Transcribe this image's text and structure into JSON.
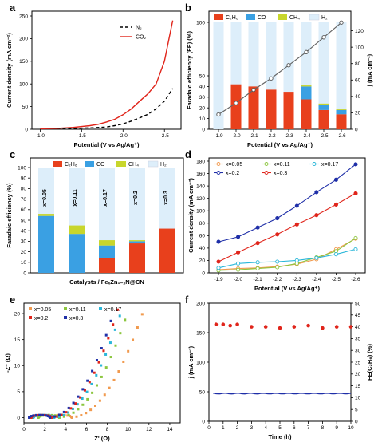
{
  "panels": [
    {
      "id": "a",
      "letter": "a",
      "type": "line",
      "xlabel": "Potential (V vs Ag/Ag⁺)",
      "ylabel": "Current density (mA cm⁻²)",
      "xlim": [
        -0.9,
        -2.7
      ],
      "ylim": [
        0,
        250
      ],
      "xticks": [
        -1.0,
        -1.5,
        -2.0,
        -2.5
      ],
      "xtick_labels": [
        "-1.0",
        "-1.5",
        "-2.0",
        "-2.5"
      ],
      "yticks": [
        0,
        50,
        100,
        150,
        200,
        250
      ],
      "series": [
        {
          "name": "N₂",
          "color": "#000000",
          "dash": "4,3",
          "x": [
            -1.0,
            -1.2,
            -1.4,
            -1.6,
            -1.8,
            -1.9,
            -2.0,
            -2.1,
            -2.2,
            -2.3,
            -2.4,
            -2.5,
            -2.6
          ],
          "y": [
            1,
            1,
            2,
            3,
            5,
            8,
            12,
            18,
            25,
            33,
            45,
            62,
            90
          ]
        },
        {
          "name": "CO₂",
          "color": "#e0251b",
          "dash": "",
          "x": [
            -1.0,
            -1.2,
            -1.4,
            -1.6,
            -1.7,
            -1.8,
            -1.9,
            -2.0,
            -2.1,
            -2.2,
            -2.3,
            -2.4,
            -2.5,
            -2.55,
            -2.6
          ],
          "y": [
            1,
            2,
            4,
            8,
            11,
            16,
            22,
            32,
            45,
            62,
            78,
            100,
            150,
            195,
            240
          ]
        }
      ]
    },
    {
      "id": "b",
      "letter": "b",
      "type": "bar+line",
      "categories": [
        "-1.9",
        "-2.0",
        "-2.1",
        "-2.2",
        "-2.3",
        "-2.4",
        "-2.5",
        "-2.6"
      ],
      "xlabel": "Potential (V vs Ag/Ag⁺)",
      "ylabel": "Faradaic efficiency (FE) (%)",
      "ylabel_right": "j (mA cm⁻²)",
      "ylim": [
        0,
        100
      ],
      "yticks": [
        0,
        10,
        20,
        30,
        40,
        50,
        100
      ],
      "yticks_right": [
        0,
        20,
        40,
        60,
        80,
        100,
        120
      ],
      "ylim_right": [
        0,
        140
      ],
      "legend": [
        "C₂H₆",
        "CO",
        "CH₄",
        "H₂"
      ],
      "colors": {
        "C2H6": "#e8401c",
        "CO": "#3aa0e3",
        "CH4": "#c8d62c",
        "H2": "#ddeefa",
        "line": "#666666"
      },
      "series": [
        {
          "name": "C₂H₆",
          "values": [
            0,
            42,
            40,
            37,
            35,
            28,
            18,
            14
          ]
        },
        {
          "name": "CO",
          "values": [
            0,
            0,
            0,
            0,
            0,
            12,
            5,
            4
          ]
        },
        {
          "name": "CH₄",
          "values": [
            0,
            0,
            0,
            0,
            0,
            1,
            1,
            1
          ]
        }
      ],
      "j_values": [
        18,
        32,
        48,
        62,
        78,
        94,
        112,
        130
      ]
    },
    {
      "id": "c",
      "letter": "c",
      "type": "bar",
      "categories": [
        "x=0.05",
        "x=0.11",
        "x=0.17",
        "x=0.2",
        "x=0.3"
      ],
      "xlabel": "Catalysts / FeₓZn₁₋ₓN@CN",
      "ylabel": "Faradaic efficiency (%)",
      "ylim": [
        0,
        100
      ],
      "yticks": [
        0,
        10,
        20,
        30,
        40,
        50,
        60,
        70,
        80,
        90,
        100
      ],
      "legend": [
        "C₂H₆",
        "CO",
        "CH₄",
        "H₂"
      ],
      "colors": {
        "C2H6": "#e8401c",
        "CO": "#3aa0e3",
        "CH4": "#c8d62c",
        "H2": "#ddeefa"
      },
      "series": [
        {
          "name": "C₂H₆",
          "values": [
            0,
            0,
            14,
            28,
            42
          ]
        },
        {
          "name": "CO",
          "values": [
            54,
            37,
            12,
            2,
            0
          ]
        },
        {
          "name": "CH₄",
          "values": [
            2,
            8,
            5,
            1,
            0
          ]
        }
      ]
    },
    {
      "id": "d",
      "letter": "d",
      "type": "line",
      "categories": [
        "-1.9",
        "-2.0",
        "-2.1",
        "-2.2",
        "-2.3",
        "-2.4",
        "-2.5",
        "-2.6"
      ],
      "xlabel": "Potential (V vs Ag/Ag⁺)",
      "ylabel": "Current density (mA cm⁻²)",
      "ylim": [
        0,
        180
      ],
      "yticks": [
        0,
        20,
        40,
        60,
        80,
        100,
        120,
        140,
        160,
        180
      ],
      "series": [
        {
          "name": "x=0.05",
          "color": "#f19a4e",
          "values": [
            5,
            7,
            8,
            10,
            14,
            22,
            38,
            55
          ]
        },
        {
          "name": "x=0.11",
          "color": "#8cc63f",
          "values": [
            4,
            5,
            7,
            9,
            15,
            25,
            35,
            56
          ]
        },
        {
          "name": "x=0.17",
          "color": "#2ab7d9",
          "values": [
            8,
            15,
            17,
            18,
            20,
            24,
            30,
            38
          ]
        },
        {
          "name": "x=0.2",
          "color": "#1f2fa8",
          "values": [
            50,
            58,
            73,
            88,
            108,
            130,
            150,
            175
          ]
        },
        {
          "name": "x=0.3",
          "color": "#e0251b",
          "values": [
            18,
            33,
            48,
            62,
            78,
            93,
            110,
            128
          ]
        }
      ]
    },
    {
      "id": "e",
      "letter": "e",
      "type": "scatter",
      "xlabel": "Z' (Ω)",
      "ylabel": "-Z'' (Ω)",
      "xlim": [
        0,
        15
      ],
      "ylim": [
        -1,
        22
      ],
      "xticks": [
        0,
        2,
        4,
        6,
        8,
        10,
        12,
        14
      ],
      "yticks": [
        0,
        5,
        10,
        15,
        20
      ],
      "series": [
        {
          "name": "x=0.05",
          "color": "#f19a4e",
          "x0": 4.6,
          "xs": 9.9,
          "k": 2.3
        },
        {
          "name": "x=0.11",
          "color": "#8cc63f",
          "x0": 3.4,
          "xs": 8.6,
          "k": 2.45
        },
        {
          "name": "x=0.17",
          "color": "#2ab7d9",
          "x0": 2.9,
          "xs": 8.1,
          "k": 2.55
        },
        {
          "name": "x=0.2",
          "color": "#e0251b",
          "x0": 2.7,
          "xs": 7.7,
          "k": 2.6
        },
        {
          "name": "x=0.3",
          "color": "#1f2fa8",
          "x0": 2.5,
          "xs": 7.5,
          "k": 2.7
        }
      ]
    },
    {
      "id": "f",
      "letter": "f",
      "type": "line+scatter",
      "xlabel": "Time (h)",
      "ylabel": "j (mA cm⁻²)",
      "ylabel_right": "FE(C₂H₆) (%)",
      "xlim": [
        0,
        10
      ],
      "ylim": [
        0,
        200
      ],
      "ylim_right": [
        0,
        50
      ],
      "xticks": [
        0,
        1,
        2,
        3,
        4,
        5,
        6,
        7,
        8,
        9,
        10
      ],
      "yticks": [
        0,
        50,
        100,
        150,
        200
      ],
      "yticks_right": [
        0,
        5,
        10,
        15,
        20,
        25,
        30,
        35,
        40,
        45,
        50
      ],
      "j_value": 47,
      "j_color": "#1f2fa8",
      "fe_color": "#e0251b",
      "fe_points": {
        "x": [
          0.5,
          1,
          1.5,
          2,
          3,
          4,
          5,
          6,
          7,
          8,
          9,
          10
        ],
        "y": [
          41,
          41,
          40.5,
          41,
          40,
          40,
          39.5,
          40,
          40.5,
          39.5,
          40,
          40
        ]
      }
    }
  ]
}
